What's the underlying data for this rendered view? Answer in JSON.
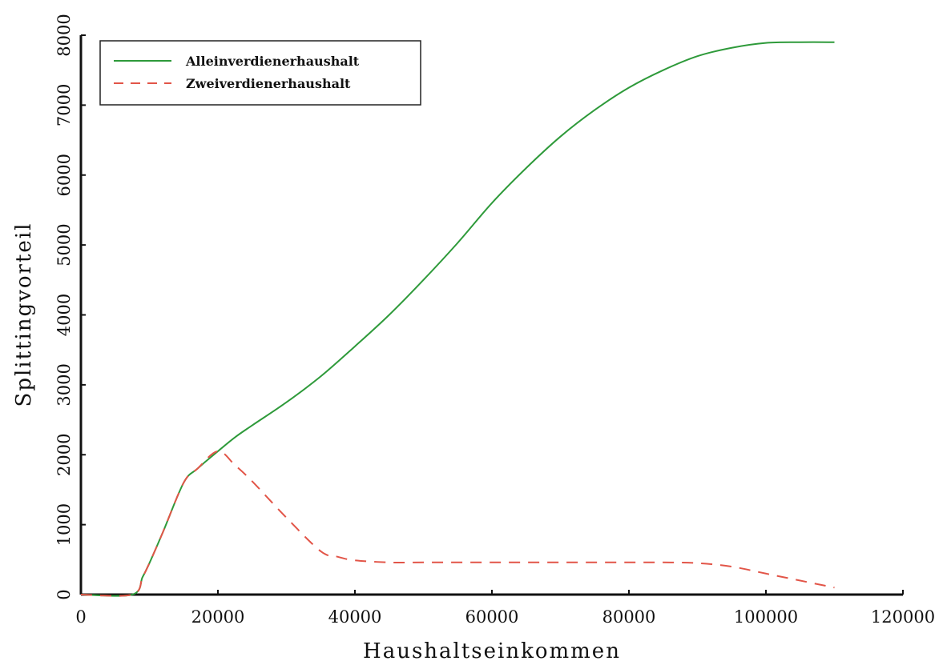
{
  "chart_data": {
    "type": "line",
    "title": "",
    "xlabel": "Haushaltseinkommen",
    "ylabel": "Splittingvorteil",
    "xlim": [
      0,
      120000
    ],
    "ylim": [
      0,
      8000
    ],
    "xticks": [
      0,
      20000,
      40000,
      60000,
      80000,
      100000,
      120000
    ],
    "yticks": [
      0,
      1000,
      2000,
      3000,
      4000,
      5000,
      6000,
      7000,
      8000
    ],
    "grid": false,
    "legend_position": "top-left",
    "series": [
      {
        "name": "Alleinverdienerhaushalt",
        "color": "#2e9a3a",
        "style": "solid",
        "x": [
          0,
          7500,
          9000,
          10000,
          12000,
          15000,
          17000,
          20000,
          22500,
          25000,
          30000,
          35000,
          40000,
          45000,
          50000,
          55000,
          60000,
          65000,
          70000,
          75000,
          80000,
          85000,
          90000,
          95000,
          100000,
          105000,
          110000
        ],
        "y": [
          0,
          0,
          250,
          450,
          900,
          1600,
          1800,
          2050,
          2250,
          2420,
          2750,
          3120,
          3550,
          4000,
          4500,
          5030,
          5600,
          6100,
          6550,
          6930,
          7250,
          7500,
          7700,
          7820,
          7890,
          7900,
          7900
        ]
      },
      {
        "name": "Zweiverdienerhaushalt",
        "color": "#e25548",
        "style": "dashed",
        "x": [
          0,
          7500,
          9000,
          10000,
          12000,
          15000,
          17000,
          20000,
          22500,
          25000,
          30000,
          35000,
          37500,
          40000,
          45000,
          50000,
          60000,
          70000,
          80000,
          85000,
          90000,
          95000,
          100000,
          105000,
          110000
        ],
        "y": [
          0,
          0,
          250,
          450,
          900,
          1600,
          1800,
          2050,
          1850,
          1620,
          1100,
          620,
          540,
          490,
          460,
          460,
          460,
          460,
          460,
          460,
          450,
          400,
          300,
          200,
          100
        ]
      }
    ]
  }
}
